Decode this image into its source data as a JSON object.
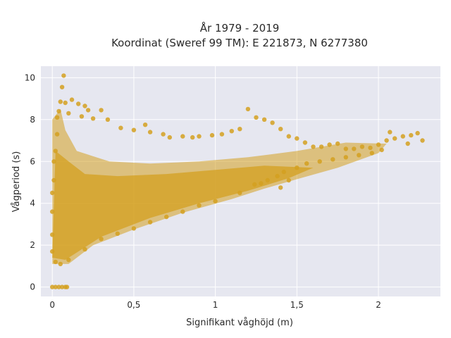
{
  "chart_data": {
    "type": "scatter",
    "title_line1": "År 1979 - 2019",
    "title_line2": "Koordinat (Sweref 99 TM): E 221873, N 6277380",
    "xlabel": "Signifikant våghöjd (m)",
    "ylabel": "Vågperiod (s)",
    "xlim": [
      -0.07,
      2.38
    ],
    "ylim": [
      -0.45,
      10.55
    ],
    "xticks": [
      0,
      0.5,
      1,
      1.5,
      2
    ],
    "xtick_labels": [
      "0",
      "0,5",
      "1",
      "1,5",
      "2"
    ],
    "yticks": [
      0,
      2,
      4,
      6,
      8,
      10
    ],
    "ytick_labels": [
      "0",
      "2",
      "4",
      "6",
      "8",
      "10"
    ],
    "grid": true,
    "marker_color": "#D4A020",
    "background": "#E6E7F0",
    "series": [
      {
        "values_description_free": true,
        "points": [
          [
            0.0,
            0.0
          ],
          [
            0.02,
            0.0
          ],
          [
            0.04,
            0.0
          ],
          [
            0.06,
            0.0
          ],
          [
            0.08,
            0.0
          ],
          [
            0.09,
            0.0
          ],
          [
            0.07,
            10.1
          ],
          [
            0.06,
            9.55
          ],
          [
            0.05,
            8.85
          ],
          [
            0.08,
            8.8
          ],
          [
            0.12,
            8.95
          ],
          [
            0.16,
            8.75
          ],
          [
            0.2,
            8.65
          ],
          [
            0.22,
            8.45
          ],
          [
            0.3,
            8.45
          ],
          [
            0.04,
            8.4
          ],
          [
            0.1,
            8.3
          ],
          [
            0.18,
            8.15
          ],
          [
            0.25,
            8.05
          ],
          [
            0.34,
            8.0
          ],
          [
            0.42,
            7.6
          ],
          [
            0.5,
            7.5
          ],
          [
            0.57,
            7.75
          ],
          [
            0.6,
            7.4
          ],
          [
            0.68,
            7.3
          ],
          [
            0.72,
            7.15
          ],
          [
            0.8,
            7.2
          ],
          [
            0.86,
            7.15
          ],
          [
            0.9,
            7.2
          ],
          [
            0.98,
            7.25
          ],
          [
            1.04,
            7.3
          ],
          [
            1.1,
            7.45
          ],
          [
            1.15,
            7.55
          ],
          [
            1.2,
            8.5
          ],
          [
            1.25,
            8.1
          ],
          [
            1.3,
            8.0
          ],
          [
            1.35,
            7.85
          ],
          [
            1.4,
            7.55
          ],
          [
            1.45,
            7.2
          ],
          [
            1.5,
            7.1
          ],
          [
            1.55,
            6.9
          ],
          [
            1.6,
            6.7
          ],
          [
            1.65,
            6.7
          ],
          [
            1.7,
            6.8
          ],
          [
            1.75,
            6.85
          ],
          [
            1.8,
            6.6
          ],
          [
            1.85,
            6.6
          ],
          [
            1.9,
            6.7
          ],
          [
            1.95,
            6.65
          ],
          [
            2.0,
            6.8
          ],
          [
            2.05,
            7.0
          ],
          [
            2.07,
            7.4
          ],
          [
            2.1,
            7.1
          ],
          [
            2.15,
            7.2
          ],
          [
            2.2,
            7.25
          ],
          [
            2.24,
            7.35
          ],
          [
            2.27,
            7.0
          ],
          [
            2.18,
            6.85
          ],
          [
            2.02,
            6.55
          ],
          [
            1.96,
            6.4
          ],
          [
            1.88,
            6.3
          ],
          [
            1.8,
            6.2
          ],
          [
            1.72,
            6.1
          ],
          [
            1.64,
            6.0
          ],
          [
            1.56,
            5.9
          ],
          [
            1.5,
            5.7
          ],
          [
            1.42,
            5.5
          ],
          [
            1.38,
            5.3
          ],
          [
            1.32,
            5.1
          ],
          [
            1.28,
            4.95
          ],
          [
            1.24,
            4.9
          ],
          [
            1.4,
            4.75
          ],
          [
            1.15,
            4.5
          ],
          [
            1.45,
            5.1
          ],
          [
            1.0,
            4.1
          ],
          [
            0.9,
            3.9
          ],
          [
            0.8,
            3.6
          ],
          [
            0.7,
            3.35
          ],
          [
            0.6,
            3.1
          ],
          [
            0.5,
            2.8
          ],
          [
            0.4,
            2.55
          ],
          [
            0.3,
            2.3
          ],
          [
            0.2,
            1.8
          ],
          [
            0.1,
            1.3
          ],
          [
            0.05,
            1.1
          ],
          [
            0.02,
            1.2
          ],
          [
            0.0,
            1.7
          ],
          [
            0.0,
            2.5
          ],
          [
            0.0,
            3.6
          ],
          [
            0.0,
            4.5
          ],
          [
            0.01,
            5.1
          ],
          [
            0.01,
            6.0
          ],
          [
            0.02,
            6.5
          ],
          [
            0.03,
            7.3
          ],
          [
            0.03,
            8.1
          ]
        ]
      }
    ]
  }
}
